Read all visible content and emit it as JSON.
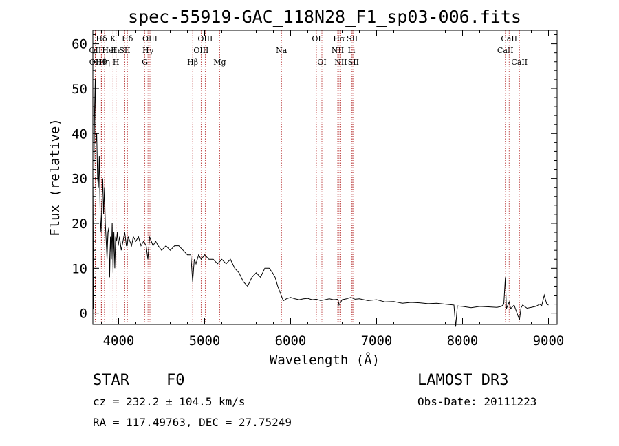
{
  "chart_data": {
    "type": "line",
    "title": "spec-55919-GAC_118N28_F1_sp03-006.fits",
    "xlabel": "Wavelength (Å)",
    "ylabel": "Flux (relative)",
    "xlim": [
      3700,
      9100
    ],
    "ylim": [
      -2.5,
      63
    ],
    "x_ticks": [
      4000,
      5000,
      6000,
      7000,
      8000,
      9000
    ],
    "x_tick_labels": [
      "4000",
      "5000",
      "6000",
      "7000",
      "8000",
      "9000"
    ],
    "y_ticks": [
      0,
      10,
      20,
      30,
      40,
      50,
      60
    ],
    "y_tick_labels": [
      "0",
      "10",
      "20",
      "30",
      "40",
      "50",
      "60"
    ],
    "grid": false,
    "line_color": "#000000",
    "marker_color": "#b22222",
    "series": [
      {
        "name": "spectrum",
        "x": [
          3705,
          3712,
          3720,
          3728,
          3736,
          3745,
          3755,
          3765,
          3775,
          3785,
          3795,
          3805,
          3815,
          3825,
          3835,
          3845,
          3855,
          3865,
          3875,
          3885,
          3895,
          3905,
          3915,
          3925,
          3935,
          3945,
          3955,
          3965,
          3975,
          3985,
          3995,
          4010,
          4030,
          4050,
          4070,
          4090,
          4100,
          4110,
          4130,
          4150,
          4170,
          4200,
          4230,
          4260,
          4290,
          4320,
          4340,
          4360,
          4380,
          4400,
          4430,
          4460,
          4500,
          4550,
          4600,
          4650,
          4700,
          4750,
          4800,
          4840,
          4861,
          4880,
          4900,
          4930,
          4960,
          5000,
          5050,
          5100,
          5150,
          5200,
          5250,
          5300,
          5350,
          5400,
          5450,
          5500,
          5550,
          5600,
          5650,
          5700,
          5750,
          5790,
          5820,
          5850,
          5870,
          5890,
          5900,
          5910,
          5920,
          5950,
          6000,
          6050,
          6100,
          6150,
          6200,
          6250,
          6300,
          6350,
          6400,
          6450,
          6500,
          6550,
          6563,
          6600,
          6650,
          6700,
          6750,
          6800,
          6900,
          7000,
          7100,
          7200,
          7300,
          7400,
          7500,
          7600,
          7700,
          7800,
          7900,
          7920,
          7940,
          8000,
          8100,
          8200,
          8300,
          8400,
          8450,
          8480,
          8498,
          8510,
          8542,
          8560,
          8600,
          8662,
          8680,
          8700,
          8750,
          8800,
          8850,
          8900,
          8920,
          8950,
          8980,
          9000
        ],
        "y": [
          1,
          32,
          45,
          52,
          38,
          40,
          30,
          28,
          35,
          22,
          18,
          24,
          30,
          22,
          28,
          20,
          16,
          12,
          18,
          19,
          8,
          17,
          12,
          20,
          9,
          18,
          10,
          17,
          16,
          18,
          15,
          17,
          14,
          16,
          18,
          15,
          15,
          17,
          16,
          15,
          17,
          16,
          17,
          15,
          16,
          15,
          12,
          17,
          16,
          15,
          16,
          15,
          14,
          15,
          14,
          15,
          15,
          14,
          13,
          13,
          7,
          12,
          11,
          13,
          12,
          13,
          12,
          12,
          11,
          12,
          11,
          12,
          10,
          9,
          7,
          6,
          8,
          9,
          8,
          10,
          10,
          9,
          8,
          6,
          5,
          4,
          3.5,
          3,
          2.8,
          3.2,
          3.5,
          3.2,
          3,
          3.2,
          3.3,
          3,
          3.1,
          2.8,
          3,
          3.2,
          3,
          3.1,
          1.8,
          3,
          3.2,
          3.5,
          3.1,
          3.2,
          2.8,
          3,
          2.5,
          2.6,
          2.2,
          2.4,
          2.3,
          2.1,
          2.2,
          2,
          1.8,
          -3,
          1.6,
          1.5,
          1.2,
          1.5,
          1.4,
          1.3,
          1.5,
          2,
          8,
          1,
          2.5,
          1,
          1.8,
          -1.5,
          1.2,
          1.8,
          1.1,
          1.3,
          1.5,
          2,
          1.6,
          4,
          2,
          1.8
        ]
      }
    ],
    "line_markers": [
      {
        "name": "OII",
        "x": 3727,
        "label_row": 2
      },
      {
        "name": "OII",
        "x": 3729,
        "label_row": 3
      },
      {
        "name": "Hθ",
        "x": 3798,
        "label_row": 3
      },
      {
        "name": "Hη",
        "x": 3835,
        "label_row": 3
      },
      {
        "name": "HeI",
        "x": 3889,
        "label_row": 2
      },
      {
        "name": "K",
        "x": 3934,
        "label_row": 1
      },
      {
        "name": "H",
        "x": 3969,
        "label_row": 3
      },
      {
        "name": "Hε",
        "x": 3970,
        "label_row": 2
      },
      {
        "name": "SII",
        "x": 4072,
        "label_row": 2
      },
      {
        "name": "Hδ",
        "x": 4102,
        "label_row": 1
      },
      {
        "name": "Hδ",
        "x": 3800,
        "label_row": 1
      },
      {
        "name": "G",
        "x": 4305,
        "label_row": 3
      },
      {
        "name": "Hγ",
        "x": 4341,
        "label_row": 2
      },
      {
        "name": "OIII",
        "x": 4364,
        "label_row": 1
      },
      {
        "name": "Hβ",
        "x": 4861,
        "label_row": 3
      },
      {
        "name": "OIII",
        "x": 4959,
        "label_row": 2
      },
      {
        "name": "OIII",
        "x": 5007,
        "label_row": 1
      },
      {
        "name": "Mg",
        "x": 5175,
        "label_row": 3
      },
      {
        "name": "Na",
        "x": 5894,
        "label_row": 2
      },
      {
        "name": "OI",
        "x": 6300,
        "label_row": 1
      },
      {
        "name": "OI",
        "x": 6364,
        "label_row": 3
      },
      {
        "name": "NII",
        "x": 6548,
        "label_row": 2
      },
      {
        "name": "Hα",
        "x": 6563,
        "label_row": 1
      },
      {
        "name": "NII",
        "x": 6583,
        "label_row": 3
      },
      {
        "name": "Li",
        "x": 6708,
        "label_row": 2
      },
      {
        "name": "SII",
        "x": 6717,
        "label_row": 1
      },
      {
        "name": "SII",
        "x": 6731,
        "label_row": 3
      },
      {
        "name": "CaII",
        "x": 8498,
        "label_row": 2
      },
      {
        "name": "CaII",
        "x": 8542,
        "label_row": 1
      },
      {
        "name": "CaII",
        "x": 8662,
        "label_row": 3
      }
    ]
  },
  "info": {
    "object_class": "STAR",
    "subclass": "F0",
    "survey": "LAMOST DR3",
    "cz": "cz = 232.2 ± 104.5 km/s",
    "obs_date": "Obs-Date: 20111223",
    "radec": "RA = 117.49763, DEC =  27.75249"
  }
}
